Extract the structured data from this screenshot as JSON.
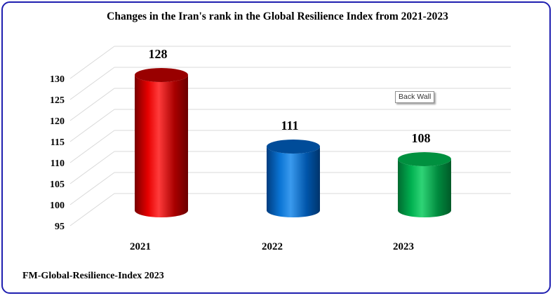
{
  "chart_data": {
    "type": "bar",
    "title": "Changes in the Iran's rank in the Global Resilience Index from 2021-2023",
    "categories": [
      "2021",
      "2022",
      "2023"
    ],
    "values": [
      128,
      111,
      108
    ],
    "data_labels": [
      "128",
      "111",
      "108"
    ],
    "bar_colors": [
      "#cc0000",
      "#0066cc",
      "#00b050"
    ],
    "ylim": [
      95,
      130
    ],
    "yticks": [
      "95",
      "100",
      "105",
      "110",
      "115",
      "120",
      "125",
      "130"
    ],
    "xlabel": "",
    "ylabel": "",
    "grid": true,
    "legend": "none"
  },
  "source": "FM-Global-Resilience-Index 2023",
  "tooltip": "Back Wall"
}
